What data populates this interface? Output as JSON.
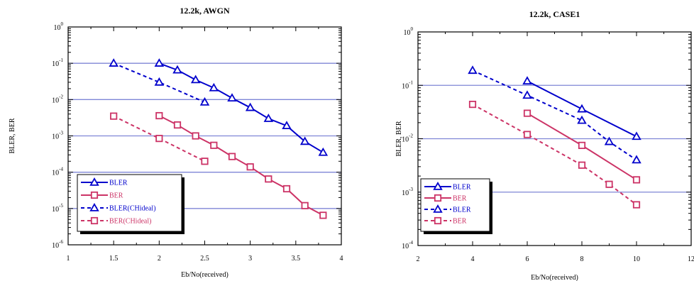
{
  "chart_data": [
    {
      "type": "line",
      "title": "12.2k, AWGN",
      "xlabel": "Eb/No(received)",
      "ylabel": "BLER, BER",
      "xlim": [
        1,
        4
      ],
      "ylim": [
        1e-06,
        1
      ],
      "yscale": "log",
      "grid": "horizontal at decades",
      "legend_position": "bottom-left",
      "x_ticks": [
        "1",
        "1.5",
        "2",
        "2.5",
        "3",
        "3.5",
        "4"
      ],
      "y_ticks": [
        {
          "base": "10",
          "exp": "0"
        },
        {
          "base": "10",
          "exp": "-1"
        },
        {
          "base": "10",
          "exp": "-2"
        },
        {
          "base": "10",
          "exp": "-3"
        },
        {
          "base": "10",
          "exp": "-4"
        },
        {
          "base": "10",
          "exp": "-5"
        },
        {
          "base": "10",
          "exp": "-6"
        }
      ],
      "series": [
        {
          "name": "BLER",
          "color": "#0000cc",
          "dash": false,
          "marker": "triangle",
          "x": [
            2.0,
            2.2,
            2.4,
            2.6,
            2.8,
            3.0,
            3.2,
            3.4,
            3.6,
            3.8
          ],
          "y": [
            0.1,
            0.065,
            0.035,
            0.021,
            0.011,
            0.006,
            0.003,
            0.0019,
            0.0007,
            0.00035
          ]
        },
        {
          "name": "BER",
          "color": "#cc3366",
          "dash": false,
          "marker": "square",
          "x": [
            2.0,
            2.2,
            2.4,
            2.6,
            2.8,
            3.0,
            3.2,
            3.4,
            3.6,
            3.8
          ],
          "y": [
            0.0036,
            0.002,
            0.001,
            0.00055,
            0.00027,
            0.00014,
            6.5e-05,
            3.5e-05,
            1.2e-05,
            6.5e-06
          ]
        },
        {
          "name": "BLER(CHideal)",
          "color": "#0000cc",
          "dash": true,
          "marker": "triangle",
          "x": [
            1.5,
            2.0,
            2.5
          ],
          "y": [
            0.1,
            0.03,
            0.0085
          ]
        },
        {
          "name": "BER(CHideal)",
          "color": "#cc3366",
          "dash": true,
          "marker": "square",
          "x": [
            1.5,
            2.0,
            2.5
          ],
          "y": [
            0.0035,
            0.00085,
            0.0002
          ]
        }
      ]
    },
    {
      "type": "line",
      "title": "12.2k, CASE1",
      "xlabel": "Eb/No(received)",
      "ylabel": "BLER, BER",
      "xlim": [
        2,
        12
      ],
      "ylim": [
        0.0001,
        1
      ],
      "yscale": "log",
      "grid": "horizontal at decades",
      "legend_position": "bottom-left",
      "x_ticks": [
        "2",
        "4",
        "6",
        "8",
        "10",
        "12"
      ],
      "y_ticks": [
        {
          "base": "10",
          "exp": "0"
        },
        {
          "base": "10",
          "exp": "-1"
        },
        {
          "base": "10",
          "exp": "-2"
        },
        {
          "base": "10",
          "exp": "-3"
        },
        {
          "base": "10",
          "exp": "-4"
        }
      ],
      "series": [
        {
          "name": "BLER",
          "color": "#0000cc",
          "dash": false,
          "marker": "triangle",
          "x": [
            6,
            8,
            10
          ],
          "y": [
            0.12,
            0.036,
            0.011
          ]
        },
        {
          "name": "BER",
          "color": "#cc3366",
          "dash": false,
          "marker": "square",
          "x": [
            6,
            8,
            10
          ],
          "y": [
            0.03,
            0.0075,
            0.0017
          ]
        },
        {
          "name": "BLER",
          "color": "#0000cc",
          "dash": true,
          "marker": "triangle",
          "x": [
            4,
            6,
            8,
            9,
            10
          ],
          "y": [
            0.19,
            0.065,
            0.022,
            0.0088,
            0.004
          ]
        },
        {
          "name": "BER",
          "color": "#cc3366",
          "dash": true,
          "marker": "square",
          "x": [
            4,
            6,
            8,
            9,
            10
          ],
          "y": [
            0.044,
            0.012,
            0.0032,
            0.0014,
            0.00058
          ]
        }
      ]
    }
  ]
}
